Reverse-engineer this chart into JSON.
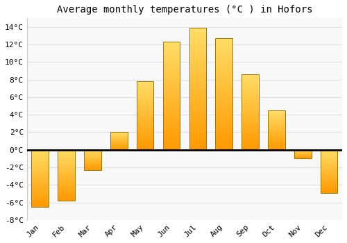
{
  "title": "Average monthly temperatures (°C ) in Hofors",
  "months": [
    "Jan",
    "Feb",
    "Mar",
    "Apr",
    "May",
    "Jun",
    "Jul",
    "Aug",
    "Sep",
    "Oct",
    "Nov",
    "Dec"
  ],
  "values": [
    -6.5,
    -5.8,
    -2.3,
    2.0,
    7.8,
    12.3,
    13.9,
    12.7,
    8.6,
    4.5,
    -1.0,
    -4.9
  ],
  "bar_color_top": "#FFDD55",
  "bar_color_bottom": "#FF9900",
  "bar_edge_color": "#997700",
  "ylim": [
    -8,
    15
  ],
  "yticks": [
    -8,
    -6,
    -4,
    -2,
    0,
    2,
    4,
    6,
    8,
    10,
    12,
    14
  ],
  "ytick_labels": [
    "-8°C",
    "-6°C",
    "-4°C",
    "-2°C",
    "0°C",
    "2°C",
    "4°C",
    "6°C",
    "8°C",
    "10°C",
    "12°C",
    "14°C"
  ],
  "background_color": "#ffffff",
  "plot_bg_color": "#f8f8f8",
  "grid_color": "#e0e0e0",
  "title_fontsize": 10,
  "tick_fontsize": 8,
  "font_family": "monospace"
}
